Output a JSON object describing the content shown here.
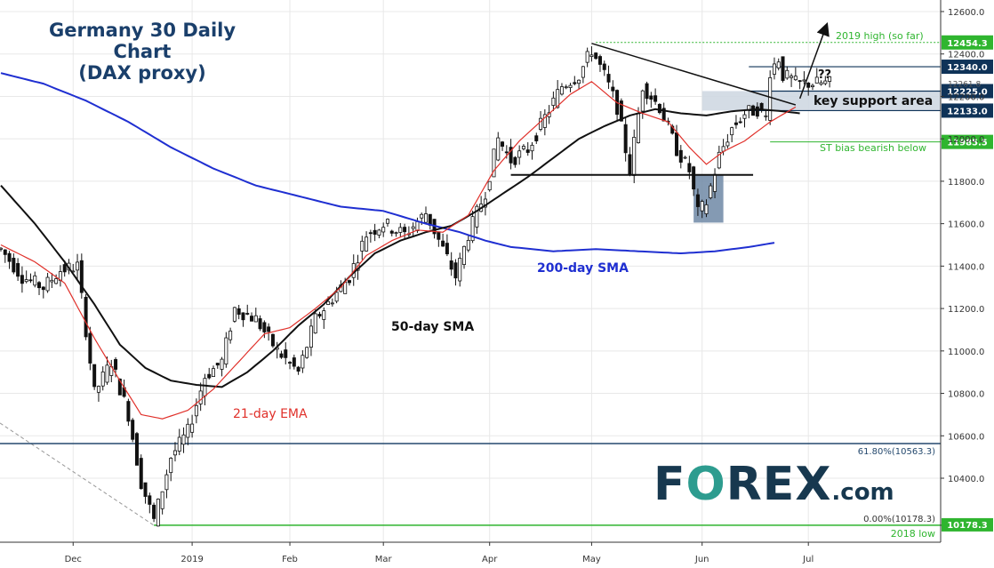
{
  "title_line1": "Germany 30 Daily Chart",
  "title_line2": "(DAX proxy)",
  "logo": {
    "left": "F",
    "o": "O",
    "rest": "REX",
    "suffix": ".com"
  },
  "colors": {
    "up": "#3a3a3a",
    "down": "#111111",
    "ema21": "#e0302a",
    "sma50": "#111111",
    "sma200": "#1f2fd1",
    "label_green": "#2fb52f",
    "label_navy": "#0f3358",
    "fib_line": "#25496e",
    "support_box": "#cfd8e2",
    "highlight_box": "#6f88a6",
    "grid": "#e8e8e8",
    "logo_navy": "#17384f",
    "logo_teal": "#2d9c8f"
  },
  "chart_data": {
    "type": "candlestick",
    "title": "Germany 30 Daily Chart (DAX proxy)",
    "ylim": [
      10150,
      12650
    ],
    "y_ticks": [
      10400,
      10600,
      10800,
      11000,
      11200,
      11400,
      11600,
      11800,
      12000,
      12200,
      12400,
      12600
    ],
    "y_tick_labels": [
      "10400.0",
      "10600.0",
      "10800.0",
      "11000.0",
      "11200.0",
      "11400.0",
      "11600.0",
      "11800.0",
      "12000.0",
      "12200.0",
      "12400.0",
      "12600.0"
    ],
    "y_extra_label": "12261.8",
    "x_labels": [
      {
        "label": "Dec",
        "i": 17
      },
      {
        "label": "2019",
        "i": 45
      },
      {
        "label": "Feb",
        "i": 68
      },
      {
        "label": "Mar",
        "i": 90
      },
      {
        "label": "Apr",
        "i": 115
      },
      {
        "label": "May",
        "i": 139
      },
      {
        "label": "Jun",
        "i": 165
      },
      {
        "label": "Jul",
        "i": 190
      }
    ],
    "n_bars": 196,
    "price_anchors": [
      [
        0,
        11480
      ],
      [
        5,
        11350
      ],
      [
        10,
        11300
      ],
      [
        14,
        11380
      ],
      [
        18,
        11400
      ],
      [
        22,
        10800
      ],
      [
        26,
        10950
      ],
      [
        30,
        10700
      ],
      [
        33,
        10380
      ],
      [
        36,
        10200
      ],
      [
        40,
        10500
      ],
      [
        44,
        10620
      ],
      [
        48,
        10880
      ],
      [
        52,
        10950
      ],
      [
        55,
        11200
      ],
      [
        60,
        11150
      ],
      [
        65,
        11000
      ],
      [
        70,
        10900
      ],
      [
        74,
        11150
      ],
      [
        78,
        11250
      ],
      [
        82,
        11350
      ],
      [
        86,
        11550
      ],
      [
        90,
        11600
      ],
      [
        95,
        11550
      ],
      [
        100,
        11650
      ],
      [
        104,
        11480
      ],
      [
        107,
        11350
      ],
      [
        110,
        11550
      ],
      [
        114,
        11750
      ],
      [
        117,
        12000
      ],
      [
        120,
        11900
      ],
      [
        124,
        11950
      ],
      [
        128,
        12100
      ],
      [
        132,
        12250
      ],
      [
        136,
        12300
      ],
      [
        139,
        12420
      ],
      [
        142,
        12300
      ],
      [
        145,
        12150
      ],
      [
        148,
        11850
      ],
      [
        151,
        12250
      ],
      [
        155,
        12150
      ],
      [
        159,
        11950
      ],
      [
        162,
        11850
      ],
      [
        164,
        11650
      ],
      [
        166,
        11700
      ],
      [
        169,
        11920
      ],
      [
        172,
        12050
      ],
      [
        175,
        12120
      ],
      [
        178,
        12140
      ],
      [
        180,
        12100
      ],
      [
        181,
        12320
      ],
      [
        183,
        12380
      ],
      [
        184,
        12300
      ],
      [
        186,
        12280
      ],
      [
        187,
        12262
      ]
    ],
    "ema21_anchors": [
      [
        0,
        11500
      ],
      [
        8,
        11420
      ],
      [
        15,
        11320
      ],
      [
        22,
        11060
      ],
      [
        28,
        10860
      ],
      [
        33,
        10700
      ],
      [
        38,
        10680
      ],
      [
        44,
        10720
      ],
      [
        50,
        10820
      ],
      [
        56,
        10950
      ],
      [
        62,
        11080
      ],
      [
        68,
        11110
      ],
      [
        74,
        11200
      ],
      [
        80,
        11300
      ],
      [
        86,
        11450
      ],
      [
        92,
        11520
      ],
      [
        98,
        11570
      ],
      [
        104,
        11560
      ],
      [
        110,
        11640
      ],
      [
        116,
        11850
      ],
      [
        122,
        11990
      ],
      [
        128,
        12100
      ],
      [
        134,
        12210
      ],
      [
        139,
        12270
      ],
      [
        145,
        12170
      ],
      [
        151,
        12120
      ],
      [
        157,
        12080
      ],
      [
        162,
        11960
      ],
      [
        166,
        11880
      ],
      [
        170,
        11940
      ],
      [
        175,
        11990
      ],
      [
        181,
        12080
      ],
      [
        187,
        12150
      ]
    ],
    "sma50_anchors": [
      [
        0,
        11780
      ],
      [
        8,
        11600
      ],
      [
        15,
        11420
      ],
      [
        22,
        11220
      ],
      [
        28,
        11030
      ],
      [
        34,
        10920
      ],
      [
        40,
        10860
      ],
      [
        46,
        10840
      ],
      [
        52,
        10830
      ],
      [
        58,
        10900
      ],
      [
        64,
        11000
      ],
      [
        70,
        11120
      ],
      [
        76,
        11220
      ],
      [
        82,
        11350
      ],
      [
        88,
        11460
      ],
      [
        94,
        11520
      ],
      [
        100,
        11560
      ],
      [
        106,
        11590
      ],
      [
        112,
        11660
      ],
      [
        118,
        11740
      ],
      [
        124,
        11820
      ],
      [
        130,
        11910
      ],
      [
        136,
        12000
      ],
      [
        142,
        12060
      ],
      [
        148,
        12110
      ],
      [
        154,
        12140
      ],
      [
        160,
        12120
      ],
      [
        166,
        12110
      ],
      [
        172,
        12130
      ],
      [
        178,
        12140
      ],
      [
        184,
        12130
      ],
      [
        188,
        12120
      ]
    ],
    "sma200_anchors": [
      [
        0,
        12310
      ],
      [
        10,
        12260
      ],
      [
        20,
        12180
      ],
      [
        30,
        12080
      ],
      [
        40,
        11960
      ],
      [
        50,
        11860
      ],
      [
        60,
        11780
      ],
      [
        70,
        11730
      ],
      [
        80,
        11680
      ],
      [
        90,
        11660
      ],
      [
        100,
        11600
      ],
      [
        108,
        11560
      ],
      [
        114,
        11520
      ],
      [
        120,
        11490
      ],
      [
        130,
        11470
      ],
      [
        140,
        11480
      ],
      [
        150,
        11470
      ],
      [
        160,
        11460
      ],
      [
        168,
        11470
      ],
      [
        176,
        11490
      ],
      [
        182,
        11510
      ]
    ],
    "horizontal_levels": [
      {
        "value": 12454.3,
        "label": "12454.3",
        "style": "green-box",
        "note": "2019 high (so far)"
      },
      {
        "value": 12340.0,
        "label": "12340.0",
        "style": "navy-box"
      },
      {
        "value": 12225.0,
        "label": "12225.0",
        "style": "navy-box"
      },
      {
        "value": 12133.0,
        "label": "12133.0",
        "style": "navy-box"
      },
      {
        "value": 11985.5,
        "label": "11985.5",
        "style": "green-box",
        "note": "ST bias bearish below"
      },
      {
        "value": 10563.3,
        "label": "61.80%(10563.3)",
        "style": "fib"
      },
      {
        "value": 10178.3,
        "label": "0.00%(10178.3)",
        "style": "fib-low",
        "box_label": "10178.3",
        "note": "2018 low"
      }
    ],
    "annotations": {
      "ema21_label": "21-day EMA",
      "sma50_label": "50-day SMA",
      "sma200_label": "200-day SMA",
      "support_label": "key support area",
      "question": "??",
      "high_note": "2019 high (so far)",
      "bias_note": "ST bias bearish below",
      "low_note": "2018 low"
    },
    "trendline": {
      "from": [
        139,
        12450
      ],
      "to": [
        187,
        12160
      ]
    },
    "neckline": {
      "from": [
        120,
        11830
      ],
      "to": [
        177,
        11830
      ]
    },
    "support_zone": [
      12133,
      12225
    ],
    "highlight_box": {
      "i_from": 163,
      "i_to": 170,
      "low": 11605,
      "high": 11830
    }
  }
}
